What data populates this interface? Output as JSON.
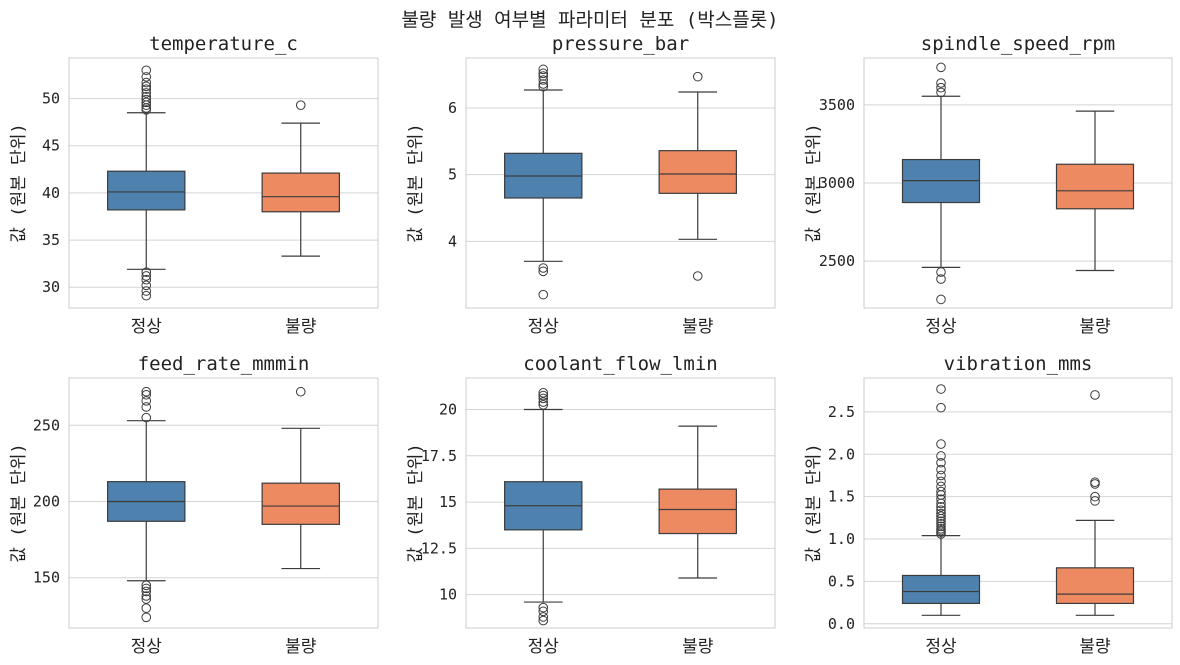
{
  "figure": {
    "title": "불량 발생 여부별 파라미터 분포 (박스플롯)"
  },
  "colors": {
    "normal": "#4e81ad",
    "defect": "#ee8a62",
    "grid": "#d4d4d4",
    "axis": "#cccccc",
    "line": "#3c3c3c"
  },
  "chart_data": [
    {
      "type": "box",
      "title": "temperature_c",
      "ylabel": "값 (원본 단위)",
      "categories": [
        "정상",
        "불량"
      ],
      "ylim": [
        27.8,
        54.3
      ],
      "yticks": [
        30,
        35,
        40,
        45,
        50
      ],
      "grid": true,
      "boxes": [
        {
          "name": "정상",
          "whislo": 31.9,
          "q1": 38.2,
          "med": 40.1,
          "q3": 42.3,
          "whishi": 48.5,
          "fliers": [
            48.8,
            49.0,
            49.3,
            49.6,
            49.9,
            50.2,
            50.6,
            51.0,
            51.3,
            51.7,
            52.3,
            53.0,
            31.6,
            31.2,
            30.8,
            30.2,
            29.6,
            29.1
          ]
        },
        {
          "name": "불량",
          "whislo": 33.3,
          "q1": 38.0,
          "med": 39.6,
          "q3": 42.1,
          "whishi": 47.4,
          "fliers": [
            49.3
          ]
        }
      ]
    },
    {
      "type": "box",
      "title": "pressure_bar",
      "ylabel": "값 (원본 단위)",
      "categories": [
        "정상",
        "불량"
      ],
      "ylim": [
        3.0,
        6.75
      ],
      "yticks": [
        4,
        5,
        6
      ],
      "grid": true,
      "boxes": [
        {
          "name": "정상",
          "whislo": 3.7,
          "q1": 4.65,
          "med": 4.98,
          "q3": 5.32,
          "whishi": 6.27,
          "fliers": [
            6.32,
            6.36,
            6.42,
            6.48,
            6.52,
            6.58,
            3.6,
            3.55,
            3.2
          ]
        },
        {
          "name": "불량",
          "whislo": 4.03,
          "q1": 4.72,
          "med": 5.01,
          "q3": 5.36,
          "whishi": 6.24,
          "fliers": [
            6.47,
            3.48
          ]
        }
      ]
    },
    {
      "type": "box",
      "title": "spindle_speed_rpm",
      "ylabel": "값 (원본 단위)",
      "categories": [
        "정상",
        "불량"
      ],
      "ylim": [
        2200,
        3800
      ],
      "yticks": [
        2500,
        3000,
        3500
      ],
      "grid": true,
      "boxes": [
        {
          "name": "정상",
          "whislo": 2460,
          "q1": 2875,
          "med": 3015,
          "q3": 3150,
          "whishi": 3555,
          "fliers": [
            3740,
            3640,
            3610,
            3580,
            2430,
            2385,
            2255
          ]
        },
        {
          "name": "불량",
          "whislo": 2440,
          "q1": 2835,
          "med": 2950,
          "q3": 3120,
          "whishi": 3460,
          "fliers": []
        }
      ]
    },
    {
      "type": "box",
      "title": "feed_rate_mmmin",
      "ylabel": "값 (원본 단위)",
      "categories": [
        "정상",
        "불량"
      ],
      "ylim": [
        117,
        281
      ],
      "yticks": [
        150,
        200,
        250
      ],
      "grid": true,
      "boxes": [
        {
          "name": "정상",
          "whislo": 148,
          "q1": 187,
          "med": 200,
          "q3": 213,
          "whishi": 253,
          "fliers": [
            272,
            270,
            266,
            262,
            255,
            145,
            143,
            141,
            138,
            136,
            130,
            124
          ]
        },
        {
          "name": "불량",
          "whislo": 156,
          "q1": 185,
          "med": 197,
          "q3": 212,
          "whishi": 248,
          "fliers": [
            272
          ]
        }
      ]
    },
    {
      "type": "box",
      "title": "coolant_flow_lmin",
      "ylabel": "값 (원본 단위)",
      "categories": [
        "정상",
        "불량"
      ],
      "ylim": [
        8.2,
        21.7
      ],
      "yticks": [
        10.0,
        12.5,
        15.0,
        17.5,
        20.0
      ],
      "grid": true,
      "boxes": [
        {
          "name": "정상",
          "whislo": 9.6,
          "q1": 13.5,
          "med": 14.8,
          "q3": 16.1,
          "whishi": 20.0,
          "fliers": [
            20.9,
            20.75,
            20.6,
            20.4,
            20.25,
            9.3,
            9.1,
            8.8,
            8.6
          ]
        },
        {
          "name": "불량",
          "whislo": 10.9,
          "q1": 13.3,
          "med": 14.6,
          "q3": 15.7,
          "whishi": 19.1,
          "fliers": []
        }
      ]
    },
    {
      "type": "box",
      "title": "vibration_mms",
      "ylabel": "값 (원본 단위)",
      "categories": [
        "정상",
        "불량"
      ],
      "ylim": [
        -0.05,
        2.9
      ],
      "yticks": [
        0.0,
        0.5,
        1.0,
        1.5,
        2.0,
        2.5
      ],
      "yticklabels": [
        "0.0",
        "0.5",
        "1.0",
        "1.5",
        "2.0",
        "2.5"
      ],
      "grid": true,
      "boxes": [
        {
          "name": "정상",
          "whislo": 0.1,
          "q1": 0.24,
          "med": 0.38,
          "q3": 0.57,
          "whishi": 1.04,
          "fliers": [
            1.06,
            1.08,
            1.1,
            1.12,
            1.15,
            1.18,
            1.21,
            1.24,
            1.27,
            1.3,
            1.34,
            1.38,
            1.42,
            1.47,
            1.52,
            1.56,
            1.62,
            1.68,
            1.75,
            1.82,
            1.9,
            1.98,
            2.12,
            2.55,
            2.77
          ]
        },
        {
          "name": "불량",
          "whislo": 0.1,
          "q1": 0.24,
          "med": 0.35,
          "q3": 0.66,
          "whishi": 1.22,
          "fliers": [
            1.45,
            1.5,
            1.65,
            1.67,
            2.7
          ]
        }
      ]
    }
  ]
}
